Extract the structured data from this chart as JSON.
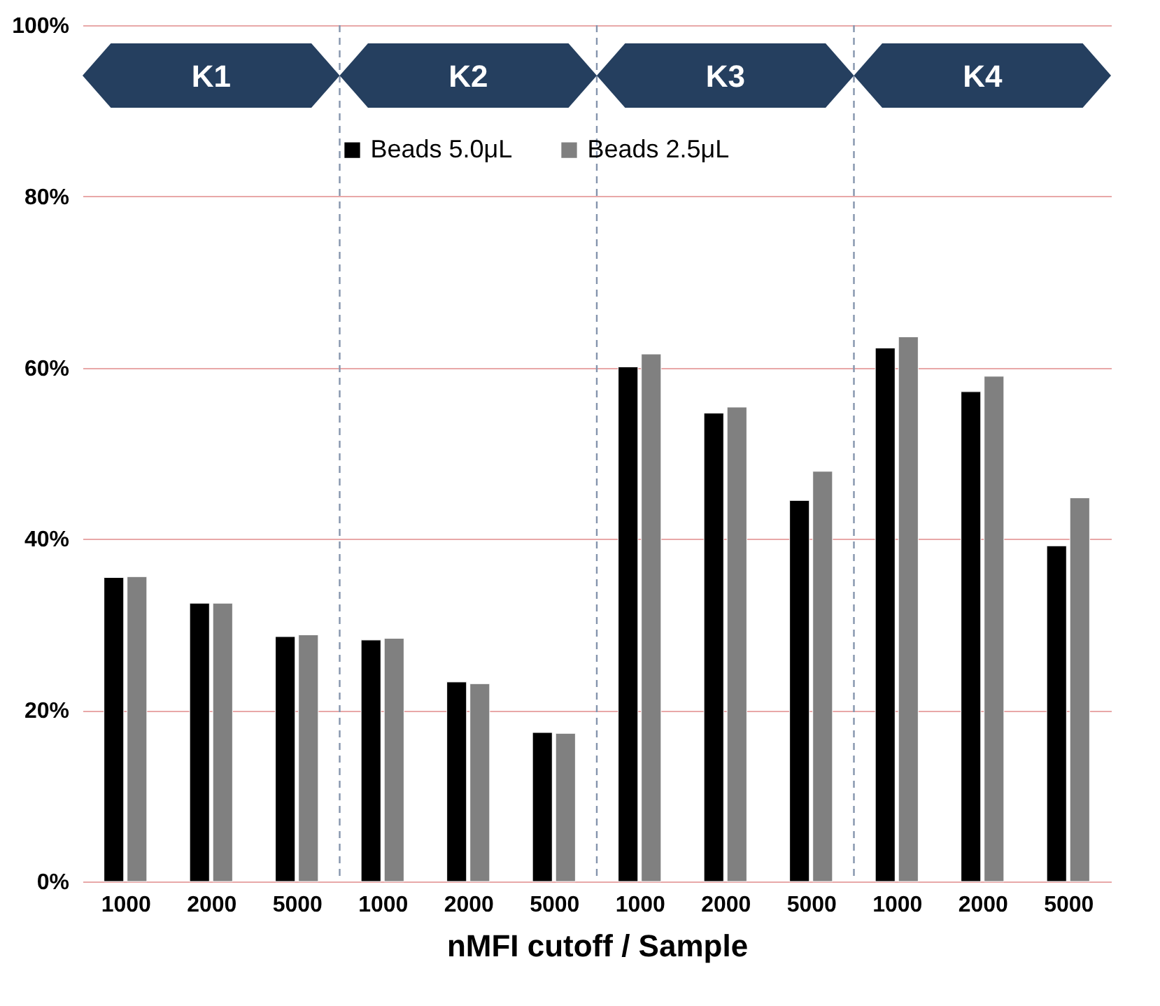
{
  "chart_data": {
    "type": "bar",
    "xlabel": "nMFI cutoff / Sample",
    "categories": [
      "1000",
      "2000",
      "5000",
      "1000",
      "2000",
      "5000",
      "1000",
      "2000",
      "5000",
      "1000",
      "2000",
      "5000"
    ],
    "series": [
      {
        "name": "Beads 5.0μL",
        "color": "#000000",
        "values": [
          35.5,
          32.5,
          28.6,
          28.2,
          23.3,
          17.4,
          60.1,
          54.7,
          44.5,
          62.3,
          57.2,
          39.2
        ]
      },
      {
        "name": "Beads 2.5μL",
        "color": "#808080",
        "values": [
          35.6,
          32.5,
          28.8,
          28.4,
          23.1,
          17.3,
          61.6,
          55.4,
          47.9,
          63.6,
          59.0,
          44.8
        ]
      }
    ],
    "ylim": [
      0,
      100
    ],
    "yticks": [
      {
        "value": 0,
        "label": "0%"
      },
      {
        "value": 20,
        "label": "20%"
      },
      {
        "value": 40,
        "label": "40%"
      },
      {
        "value": 60,
        "label": "60%"
      },
      {
        "value": 80,
        "label": "80%"
      },
      {
        "value": 100,
        "label": "100%"
      }
    ],
    "grid": "y",
    "legend": "top",
    "annotations": [
      "K1",
      "K2",
      "K3",
      "K4"
    ]
  }
}
